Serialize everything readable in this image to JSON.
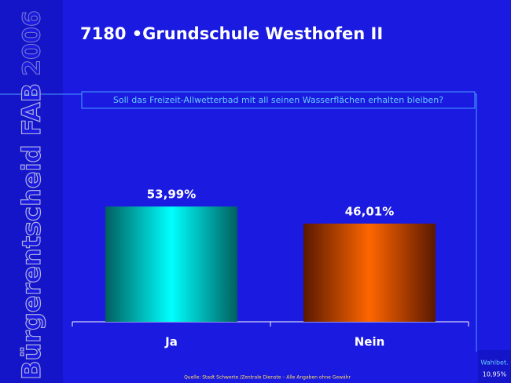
{
  "chart_data": {
    "type": "bar",
    "side_title": "Bürgerentscheid FAB",
    "year": "2006",
    "title": "7180 •Grundschule Westhofen II",
    "subtitle": "Soll das Freizeit-Allwetterbad mit all seinen Wasserflächen erhalten bleiben?",
    "categories": [
      "Ja",
      "Nein"
    ],
    "values": [
      53.99,
      46.01
    ],
    "value_labels": [
      "53,99%",
      "46,01%"
    ],
    "colors": [
      "#00ffff",
      "#ff6600"
    ],
    "source": "Quelle: Stadt Schwerte /Zentrale Dienste – Alle Angaben ohne Gewähr",
    "turnout_label": "Wahlbet.",
    "turnout": "10,95%"
  }
}
